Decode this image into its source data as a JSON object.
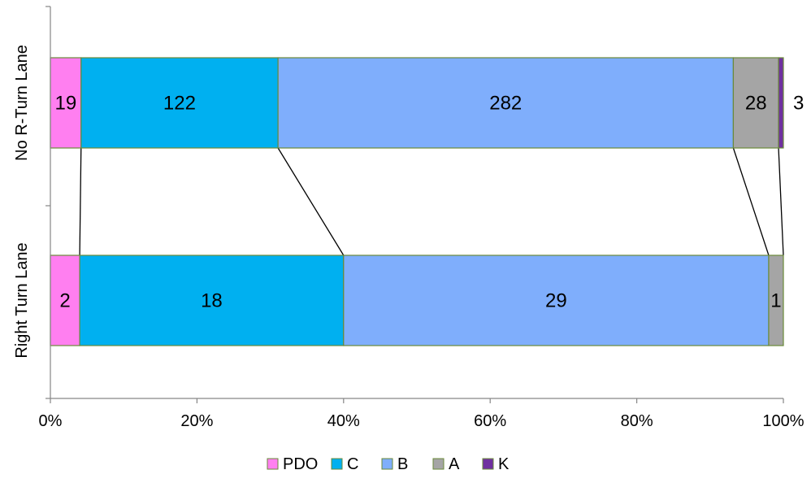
{
  "chart_data": {
    "type": "bar",
    "orientation": "horizontal",
    "stacked": "percent",
    "categories": [
      "No R-Turn Lane",
      "Right Turn Lane"
    ],
    "series": [
      {
        "name": "PDO",
        "values": [
          19,
          2
        ],
        "color": "#ff7ff0"
      },
      {
        "name": "C",
        "values": [
          122,
          18
        ],
        "color": "#00b0f0"
      },
      {
        "name": "B",
        "values": [
          282,
          29
        ],
        "color": "#7faefc"
      },
      {
        "name": "A",
        "values": [
          28,
          1
        ],
        "color": "#a5a5a5"
      },
      {
        "name": "K",
        "values": [
          3,
          0
        ],
        "color": "#7030a0"
      }
    ],
    "x_ticks": [
      "0%",
      "20%",
      "40%",
      "60%",
      "80%",
      "100%"
    ],
    "xlim": [
      0,
      100
    ],
    "grid": false,
    "series_lines": true,
    "legend_position": "bottom",
    "title": "",
    "xlabel": "",
    "ylabel": ""
  }
}
